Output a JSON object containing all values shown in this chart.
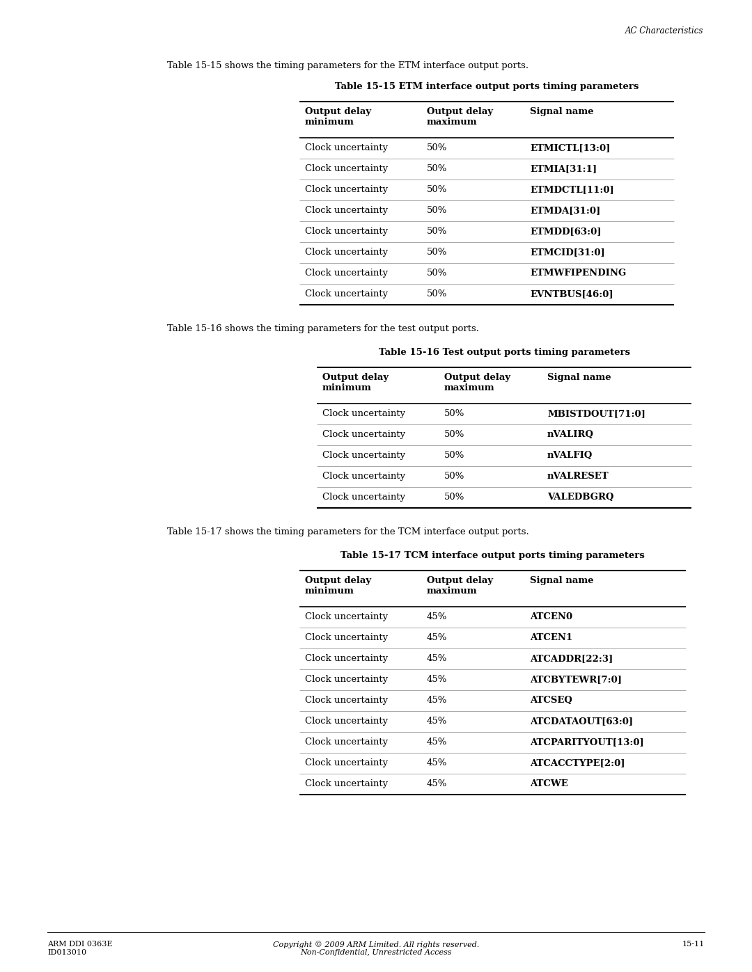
{
  "page_header": "AC Characteristics",
  "footer_left": "ARM DDI 0363E\nID013010",
  "footer_center": "Copyright © 2009 ARM Limited. All rights reserved.\nNon-Confidential, Unrestricted Access",
  "footer_right": "15-11",
  "intro1": "Table 15-15 shows the timing parameters for the ETM interface output ports.",
  "table1_title": "Table 15-15 ETM interface output ports timing parameters",
  "table1_col1_header": "Output delay\nminimum",
  "table1_col2_header": "Output delay\nmaximum",
  "table1_col3_header": "Signal name",
  "table1_rows": [
    [
      "Clock uncertainty",
      "50%",
      "ETMICTL[13:0]"
    ],
    [
      "Clock uncertainty",
      "50%",
      "ETMIA[31:1]"
    ],
    [
      "Clock uncertainty",
      "50%",
      "ETMDCTL[11:0]"
    ],
    [
      "Clock uncertainty",
      "50%",
      "ETMDA[31:0]"
    ],
    [
      "Clock uncertainty",
      "50%",
      "ETMDD[63:0]"
    ],
    [
      "Clock uncertainty",
      "50%",
      "ETMCID[31:0]"
    ],
    [
      "Clock uncertainty",
      "50%",
      "ETMWFIPENDING"
    ],
    [
      "Clock uncertainty",
      "50%",
      "EVNTBUS[46:0]"
    ]
  ],
  "intro2": "Table 15-16 shows the timing parameters for the test output ports.",
  "table2_title": "Table 15-16 Test output ports timing parameters",
  "table2_col1_header": "Output delay\nminimum",
  "table2_col2_header": "Output delay\nmaximum",
  "table2_col3_header": "Signal name",
  "table2_rows": [
    [
      "Clock uncertainty",
      "50%",
      "MBISTDOUT[71:0]"
    ],
    [
      "Clock uncertainty",
      "50%",
      "nVALIRQ"
    ],
    [
      "Clock uncertainty",
      "50%",
      "nVALFIQ"
    ],
    [
      "Clock uncertainty",
      "50%",
      "nVALRESET"
    ],
    [
      "Clock uncertainty",
      "50%",
      "VALEDBGRQ"
    ]
  ],
  "intro3": "Table 15-17 shows the timing parameters for the TCM interface output ports.",
  "table3_title": "Table 15-17 TCM interface output ports timing parameters",
  "table3_col1_header": "Output delay\nminimum",
  "table3_col2_header": "Output delay\nmaximum",
  "table3_col3_header": "Signal name",
  "table3_rows": [
    [
      "Clock uncertainty",
      "45%",
      "ATCEN0"
    ],
    [
      "Clock uncertainty",
      "45%",
      "ATCEN1"
    ],
    [
      "Clock uncertainty",
      "45%",
      "ATCADDR[22:3]"
    ],
    [
      "Clock uncertainty",
      "45%",
      "ATCBYTEWR[7:0]"
    ],
    [
      "Clock uncertainty",
      "45%",
      "ATCSEQ"
    ],
    [
      "Clock uncertainty",
      "45%",
      "ATCDATAOUT[63:0]"
    ],
    [
      "Clock uncertainty",
      "45%",
      "ATCPARITYOUT[13:0]"
    ],
    [
      "Clock uncertainty",
      "45%",
      "ATCACCTYPE[2:0]"
    ],
    [
      "Clock uncertainty",
      "45%",
      "ATCWE"
    ]
  ],
  "bg_color": "#ffffff",
  "text_color": "#000000"
}
